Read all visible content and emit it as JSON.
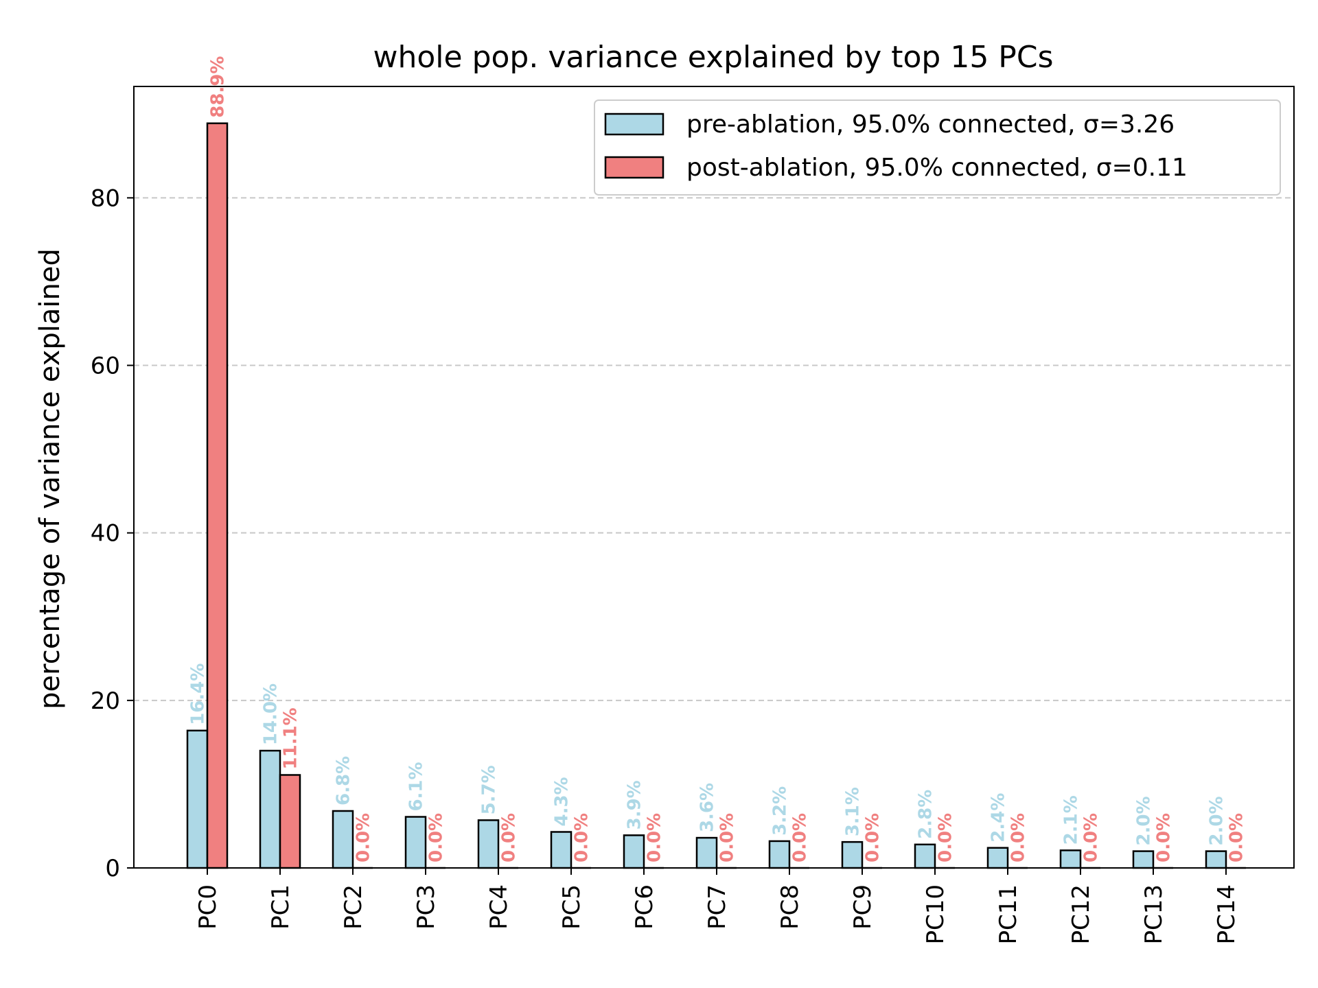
{
  "chart_data": {
    "type": "bar",
    "title": "whole pop. variance explained by top 15 PCs",
    "xlabel": "",
    "ylabel": "percentage of variance explained",
    "ylim": [
      0,
      93.3
    ],
    "yticks": [
      0,
      20,
      40,
      60,
      80
    ],
    "grid": "y-dashed",
    "legend_position": "top-right",
    "categories": [
      "PC0",
      "PC1",
      "PC2",
      "PC3",
      "PC4",
      "PC5",
      "PC6",
      "PC7",
      "PC8",
      "PC9",
      "PC10",
      "PC11",
      "PC12",
      "PC13",
      "PC14"
    ],
    "series": [
      {
        "name": "pre-ablation, 95.0% connected, σ=3.26",
        "color": "#add8e6",
        "values": [
          16.4,
          14.0,
          6.8,
          6.1,
          5.7,
          4.3,
          3.9,
          3.6,
          3.2,
          3.1,
          2.8,
          2.4,
          2.1,
          2.0,
          2.0
        ],
        "labels": [
          "16.4%",
          "14.0%",
          "6.8%",
          "6.1%",
          "5.7%",
          "4.3%",
          "3.9%",
          "3.6%",
          "3.2%",
          "3.1%",
          "2.8%",
          "2.4%",
          "2.1%",
          "2.0%",
          "2.0%"
        ]
      },
      {
        "name": "post-ablation, 95.0% connected, σ=0.11",
        "color": "#f08080",
        "values": [
          88.9,
          11.1,
          0.0,
          0.0,
          0.0,
          0.0,
          0.0,
          0.0,
          0.0,
          0.0,
          0.0,
          0.0,
          0.0,
          0.0,
          0.0
        ],
        "labels": [
          "88.9%",
          "11.1%",
          "0.0%",
          "0.0%",
          "0.0%",
          "0.0%",
          "0.0%",
          "0.0%",
          "0.0%",
          "0.0%",
          "0.0%",
          "0.0%",
          "0.0%",
          "0.0%",
          "0.0%"
        ]
      }
    ]
  }
}
